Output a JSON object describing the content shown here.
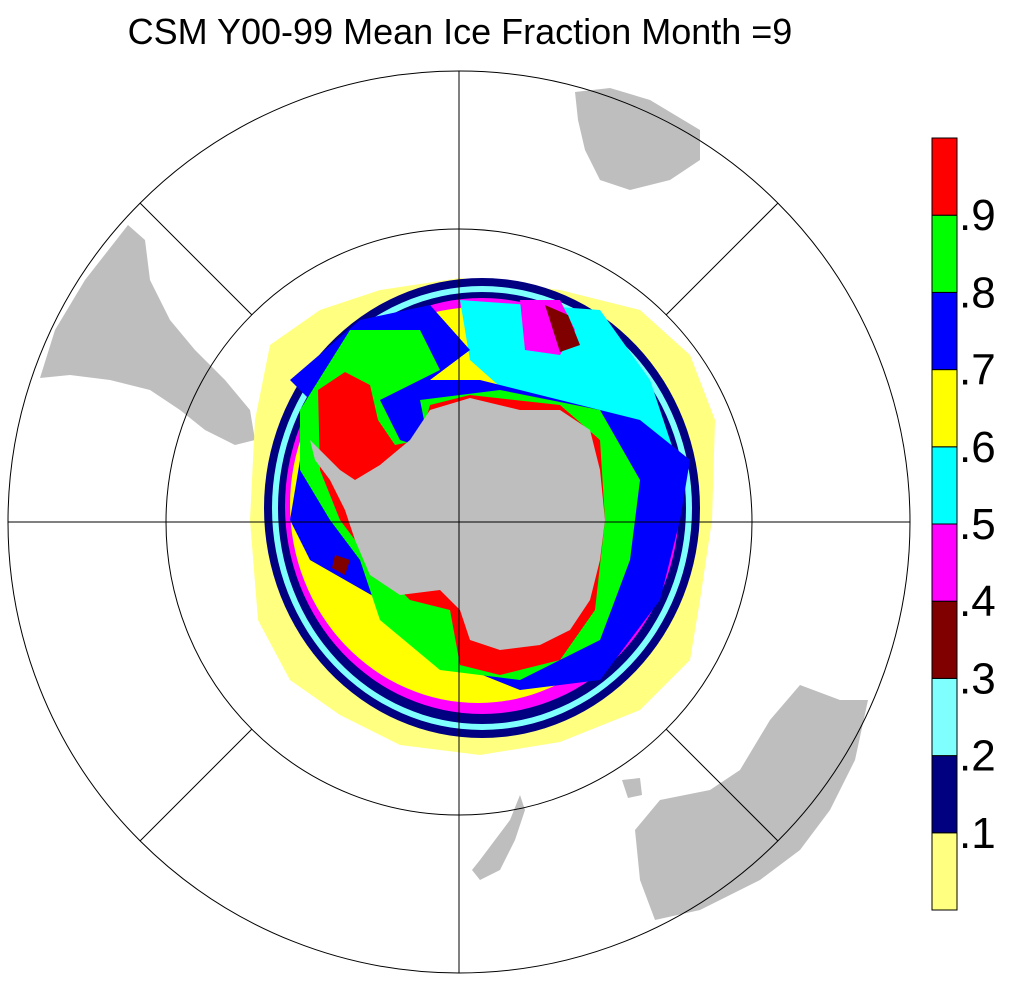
{
  "title": "CSM Y00-99 Mean Ice Fraction Month =9",
  "colorbar": {
    "colors": [
      "#ffff80",
      "#000080",
      "#80ffff",
      "#800000",
      "#ff00ff",
      "#00ffff",
      "#ffff00",
      "#0000ff",
      "#00ff00",
      "#ff0000"
    ],
    "levels": [
      {
        "value": 0.1,
        "label": ".1"
      },
      {
        "value": 0.2,
        "label": ".2"
      },
      {
        "value": 0.3,
        "label": ".3"
      },
      {
        "value": 0.4,
        "label": ".4"
      },
      {
        "value": 0.5,
        "label": ".5"
      },
      {
        "value": 0.6,
        "label": ".6"
      },
      {
        "value": 0.7,
        "label": ".7"
      },
      {
        "value": 0.8,
        "label": ".8"
      },
      {
        "value": 0.9,
        "label": ".9"
      }
    ]
  }
}
